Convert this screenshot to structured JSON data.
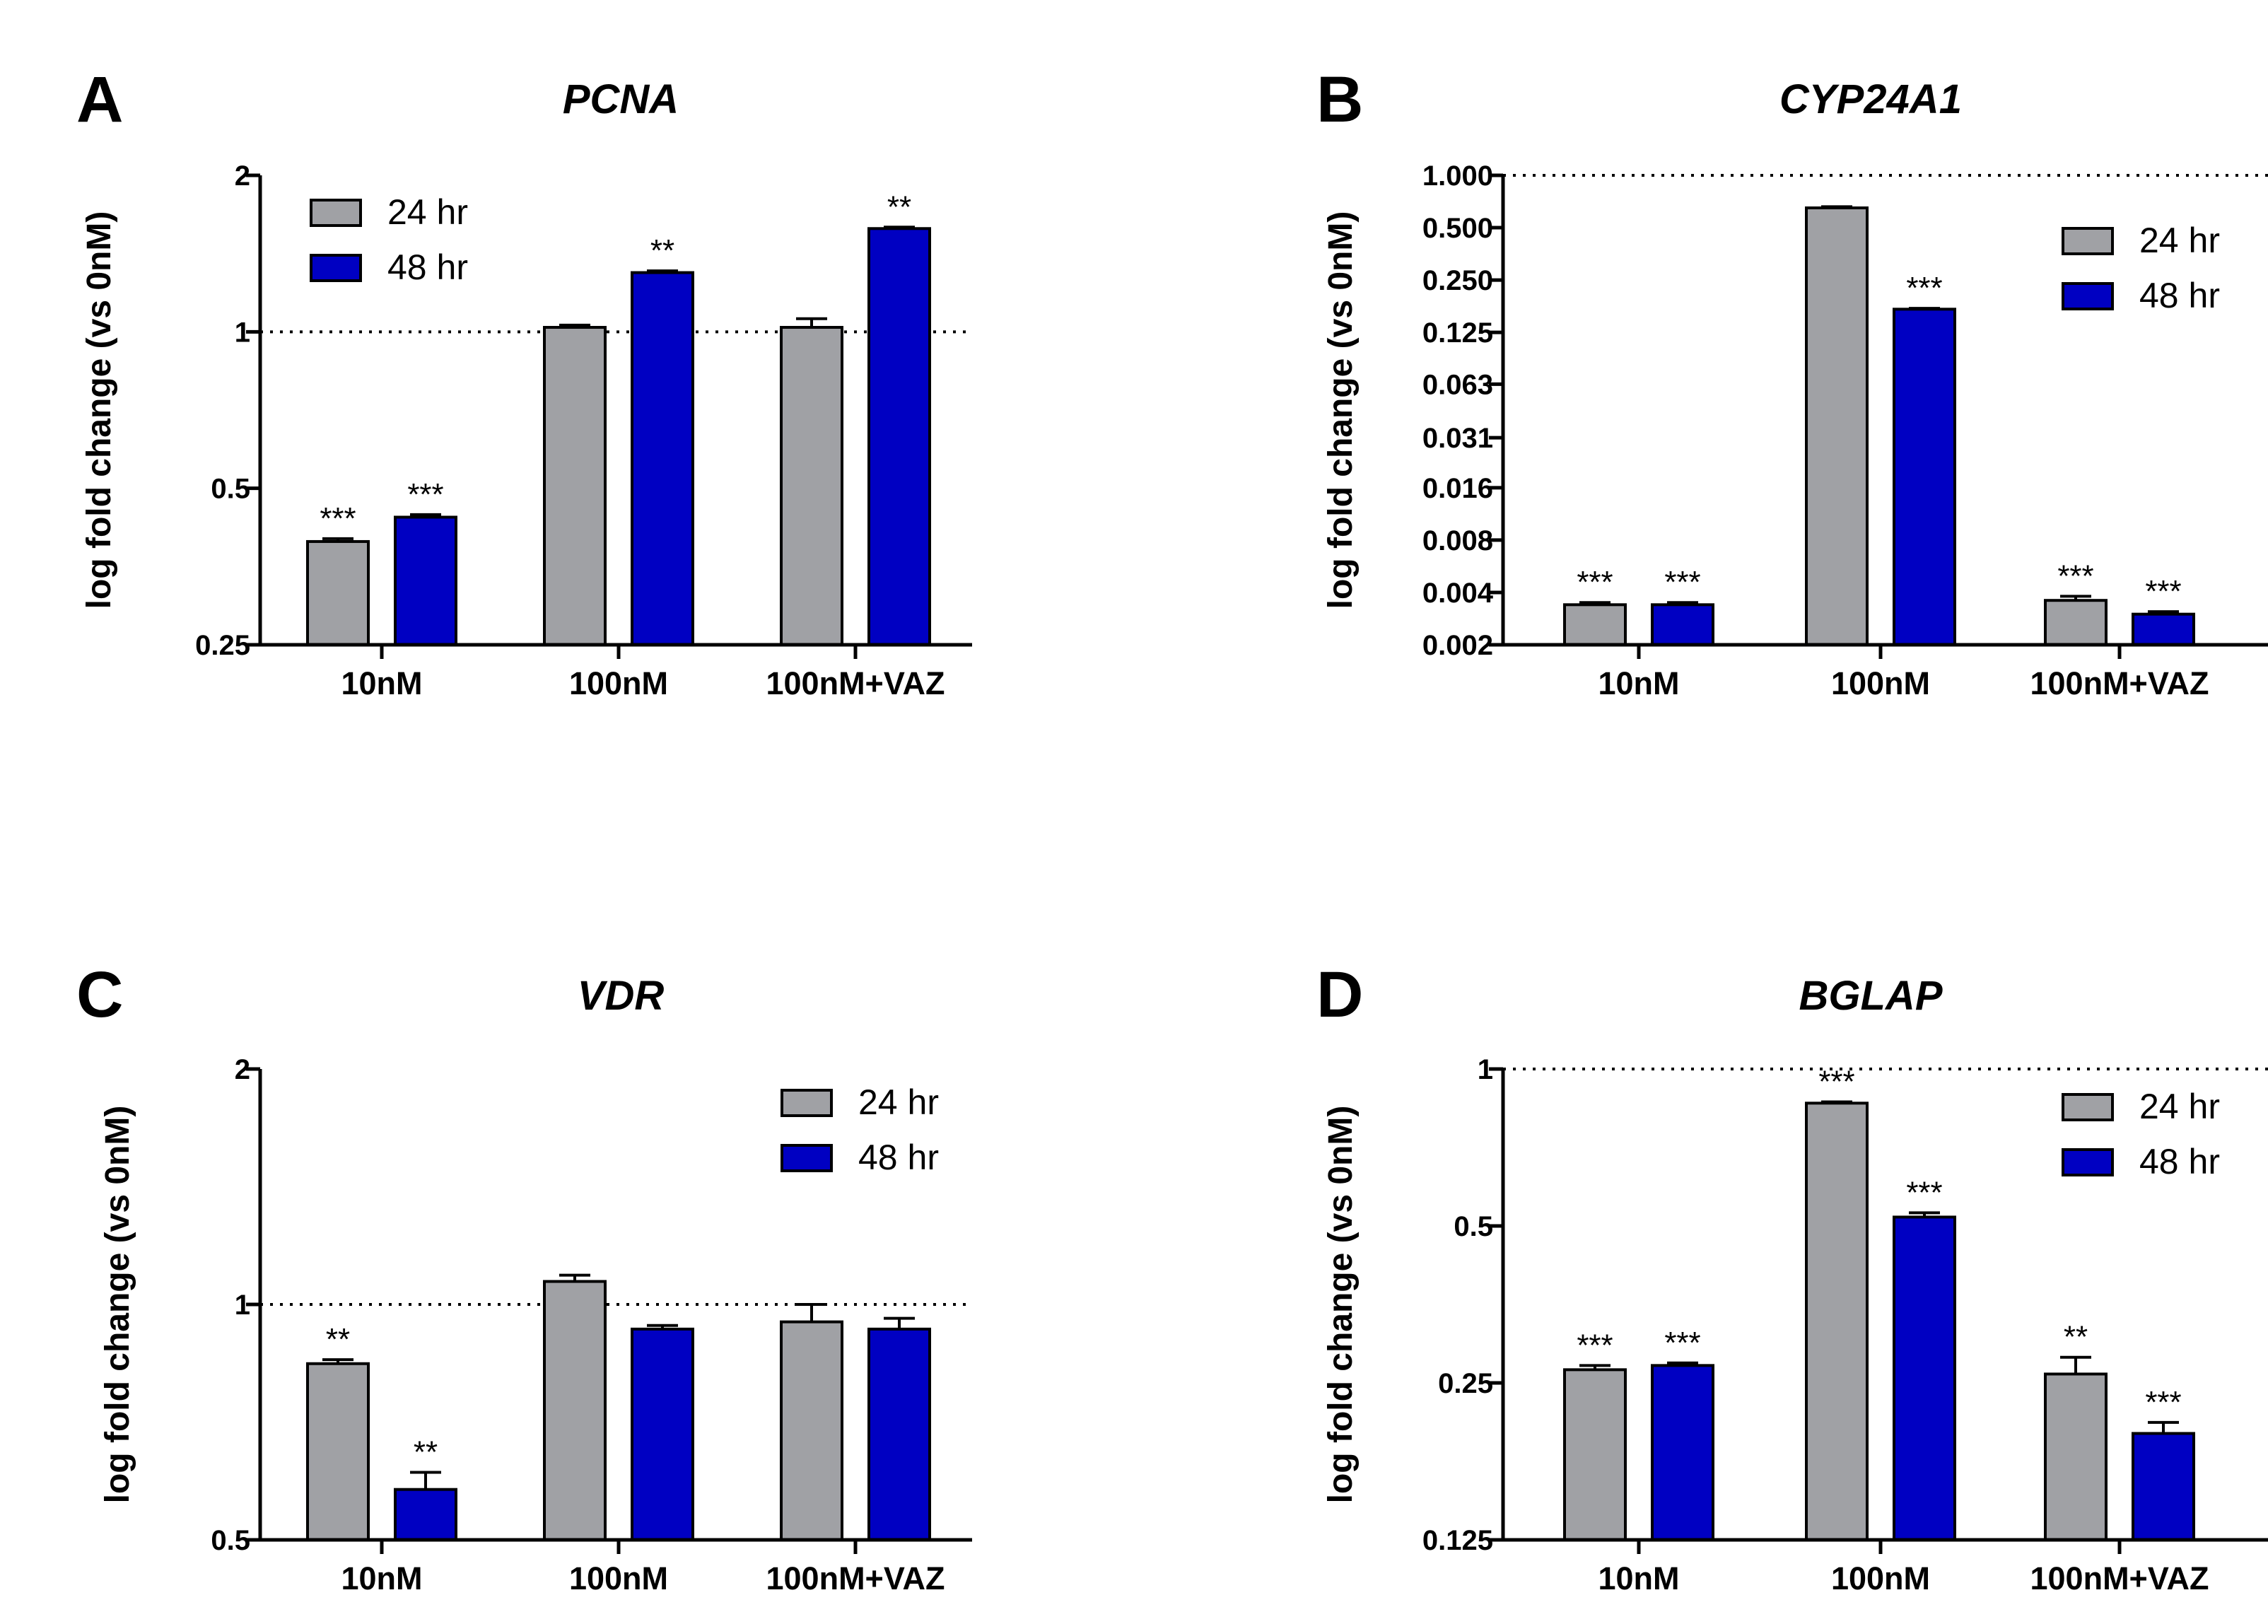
{
  "colors": {
    "series_24": "#a0a1a5",
    "series_48": "#0000c2",
    "axis": "#000000"
  },
  "chart_data": [
    {
      "panel": "A",
      "type": "bar",
      "scale": "log2",
      "title": "PCNA",
      "xlabel": "",
      "ylabel": "log fold change (vs 0nM)",
      "ylim": [
        0.25,
        2
      ],
      "yticks": [
        0.25,
        0.5,
        1,
        2
      ],
      "ytick_labels": [
        "0.25",
        "0.5",
        "1",
        "2"
      ],
      "reference_line": 1,
      "legend": "top-left",
      "categories": [
        "10nM",
        "100nM",
        "100nM+VAZ"
      ],
      "series": [
        {
          "name": "24 hr",
          "values": [
            0.395,
            1.02,
            1.02
          ],
          "errors": [
            0.005,
            0.01,
            0.04
          ],
          "sig": [
            "***",
            "",
            ""
          ]
        },
        {
          "name": "48 hr",
          "values": [
            0.44,
            1.3,
            1.58
          ],
          "errors": [
            0.005,
            0.01,
            0.01
          ],
          "sig": [
            "***",
            "**",
            "**"
          ]
        }
      ]
    },
    {
      "panel": "B",
      "type": "bar",
      "scale": "log2",
      "title": "CYP24A1",
      "xlabel": "",
      "ylabel": "log fold change (vs 0nM)",
      "ylim": [
        0.002,
        1.0
      ],
      "yticks": [
        0.002,
        0.004,
        0.008,
        0.016,
        0.031,
        0.063,
        0.125,
        0.25,
        0.5,
        1.0
      ],
      "ytick_labels": [
        "0.002",
        "0.004",
        "0.008",
        "0.016",
        "0.031",
        "0.063",
        "0.125",
        "0.250",
        "0.500",
        "1.000"
      ],
      "reference_line": 1.0,
      "legend": "top-right",
      "categories": [
        "10nM",
        "100nM",
        "100nM+VAZ"
      ],
      "series": [
        {
          "name": "24 hr",
          "values": [
            0.0034,
            0.65,
            0.0036
          ],
          "errors": [
            0.0001,
            0.01,
            0.0002
          ],
          "sig": [
            "***",
            "",
            "***"
          ]
        },
        {
          "name": "48 hr",
          "values": [
            0.0034,
            0.17,
            0.003
          ],
          "errors": [
            0.0001,
            0.002,
            0.0001
          ],
          "sig": [
            "***",
            "***",
            "***"
          ]
        }
      ]
    },
    {
      "panel": "C",
      "type": "bar",
      "scale": "log2",
      "title": "VDR",
      "xlabel": "",
      "ylabel": "log fold change (vs 0nM)",
      "ylim": [
        0.5,
        2
      ],
      "yticks": [
        0.5,
        1,
        2
      ],
      "ytick_labels": [
        "0.5",
        "1",
        "2"
      ],
      "reference_line": 1,
      "legend": "top-right",
      "categories": [
        "10nM",
        "100nM",
        "100nM+VAZ"
      ],
      "series": [
        {
          "name": "24 hr",
          "values": [
            0.84,
            1.07,
            0.95
          ],
          "errors": [
            0.01,
            0.02,
            0.05
          ],
          "sig": [
            "**",
            "",
            ""
          ]
        },
        {
          "name": "48 hr",
          "values": [
            0.58,
            0.93,
            0.93
          ],
          "errors": [
            0.03,
            0.01,
            0.03
          ],
          "sig": [
            "**",
            "",
            ""
          ]
        }
      ]
    },
    {
      "panel": "D",
      "type": "bar",
      "scale": "log2",
      "title": "BGLAP",
      "xlabel": "",
      "ylabel": "log fold change (vs 0nM)",
      "ylim": [
        0.125,
        1
      ],
      "yticks": [
        0.125,
        0.25,
        0.5,
        1
      ],
      "ytick_labels": [
        "0.125",
        "0.25",
        "0.5",
        "1"
      ],
      "reference_line": 1,
      "legend": "top-right",
      "categories": [
        "10nM",
        "100nM",
        "100nM+VAZ"
      ],
      "series": [
        {
          "name": "24 hr",
          "values": [
            0.265,
            0.86,
            0.26
          ],
          "errors": [
            0.005,
            0.005,
            0.02
          ],
          "sig": [
            "***",
            "***",
            "**"
          ]
        },
        {
          "name": "48 hr",
          "values": [
            0.27,
            0.52,
            0.2
          ],
          "errors": [
            0.003,
            0.01,
            0.01
          ],
          "sig": [
            "***",
            "***",
            "***"
          ]
        }
      ]
    }
  ]
}
